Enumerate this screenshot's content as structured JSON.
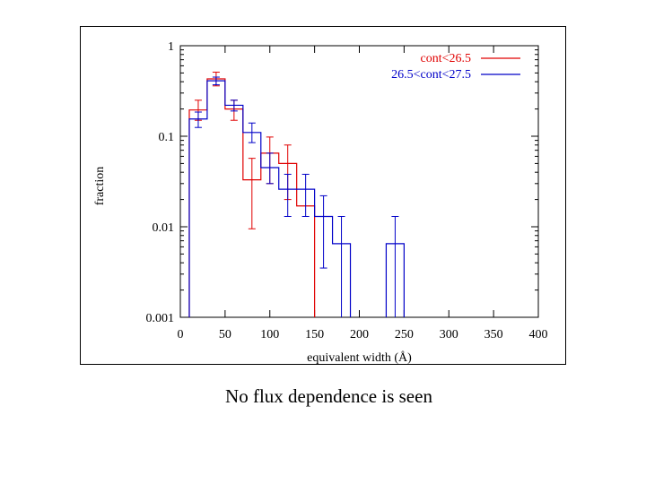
{
  "caption": "No flux dependence is seen",
  "chart_data": {
    "type": "histogram",
    "xlabel": "equivalent width (Å)",
    "ylabel": "fraction",
    "xlim": [
      0,
      400
    ],
    "ylim": [
      0.001,
      1
    ],
    "yscale": "log",
    "grid": false,
    "legend_position": "top-right",
    "x_ticks": [
      "0",
      "50",
      "100",
      "150",
      "200",
      "250",
      "300",
      "350",
      "400"
    ],
    "y_ticks": [
      "0.001",
      "0.01",
      "0.1",
      "1"
    ],
    "series": [
      {
        "name": "cont<26.5",
        "color": "#e00000",
        "bins": [
          {
            "x0": 10,
            "x1": 30,
            "y": 0.195,
            "err_lo": 0.15,
            "err_hi": 0.25
          },
          {
            "x0": 30,
            "x1": 50,
            "y": 0.43,
            "err_lo": 0.36,
            "err_hi": 0.51
          },
          {
            "x0": 50,
            "x1": 70,
            "y": 0.2,
            "err_lo": 0.15,
            "err_hi": 0.25
          },
          {
            "x0": 70,
            "x1": 90,
            "y": 0.033,
            "err_lo": 0.0095,
            "err_hi": 0.057
          },
          {
            "x0": 90,
            "x1": 110,
            "y": 0.065,
            "err_lo": 0.03,
            "err_hi": 0.098
          },
          {
            "x0": 110,
            "x1": 130,
            "y": 0.05,
            "err_lo": 0.02,
            "err_hi": 0.08
          },
          {
            "x0": 130,
            "x1": 150,
            "y": 0.017,
            "err_lo": null,
            "err_hi": null
          }
        ]
      },
      {
        "name": "26.5<cont<27.5",
        "color": "#0000c8",
        "bins": [
          {
            "x0": 10,
            "x1": 30,
            "y": 0.155,
            "err_lo": 0.125,
            "err_hi": 0.185
          },
          {
            "x0": 30,
            "x1": 50,
            "y": 0.41,
            "err_lo": 0.37,
            "err_hi": 0.45
          },
          {
            "x0": 50,
            "x1": 70,
            "y": 0.22,
            "err_lo": 0.19,
            "err_hi": 0.25
          },
          {
            "x0": 70,
            "x1": 90,
            "y": 0.11,
            "err_lo": 0.085,
            "err_hi": 0.14
          },
          {
            "x0": 90,
            "x1": 110,
            "y": 0.045,
            "err_lo": 0.03,
            "err_hi": 0.065
          },
          {
            "x0": 110,
            "x1": 130,
            "y": 0.026,
            "err_lo": 0.013,
            "err_hi": 0.038
          },
          {
            "x0": 130,
            "x1": 150,
            "y": 0.026,
            "err_lo": 0.013,
            "err_hi": 0.038
          },
          {
            "x0": 150,
            "x1": 170,
            "y": 0.013,
            "err_lo": 0.0035,
            "err_hi": 0.022
          },
          {
            "x0": 170,
            "x1": 190,
            "y": 0.0065,
            "err_lo": null,
            "err_hi": 0.013
          },
          {
            "x0": 230,
            "x1": 250,
            "y": 0.0065,
            "err_lo": null,
            "err_hi": 0.013
          }
        ]
      }
    ]
  }
}
